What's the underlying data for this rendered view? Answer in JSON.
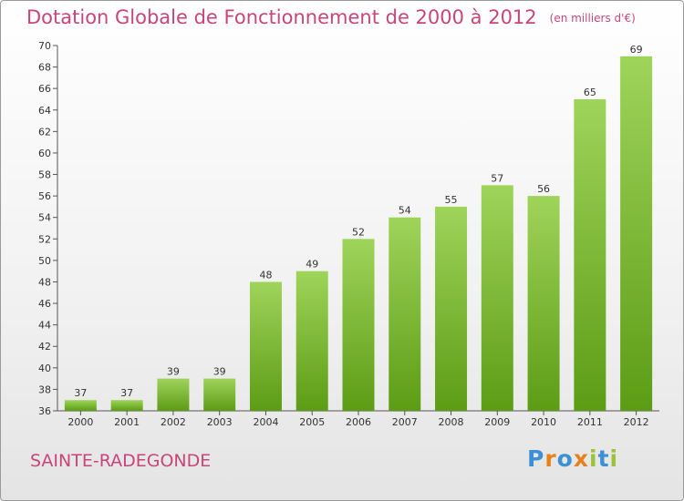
{
  "header": {
    "title": "Dotation Globale de Fonctionnement de 2000 à 2012",
    "unit": "(en milliers d'€)"
  },
  "footer": {
    "commune": "SAINTE-RADEGONDE",
    "logo": {
      "letters": [
        "P",
        "r",
        "o",
        "x",
        "i",
        "t",
        "i"
      ],
      "colors": [
        "#3d8fd6",
        "#e5821e",
        "#3d8fd6",
        "#e5821e",
        "#9bc23c",
        "#3d8fd6",
        "#9bc23c"
      ]
    }
  },
  "colors": {
    "title": "#c8457a",
    "bar_top": "#9fd45a",
    "bar_bottom": "#5c9c15",
    "axis": "#555555",
    "label": "#333333"
  },
  "chart_data": {
    "type": "bar",
    "title": "Dotation Globale de Fonctionnement de 2000 à 2012",
    "subtitle": "(en milliers d'€)",
    "xlabel": "",
    "ylabel": "",
    "categories": [
      "2000",
      "2001",
      "2002",
      "2003",
      "2004",
      "2005",
      "2006",
      "2007",
      "2008",
      "2009",
      "2010",
      "2011",
      "2012"
    ],
    "values": [
      37,
      37,
      39,
      39,
      48,
      49,
      52,
      54,
      55,
      57,
      56,
      65,
      69
    ],
    "ylim": [
      36,
      70
    ],
    "yticks": [
      36,
      38,
      40,
      42,
      44,
      46,
      48,
      50,
      52,
      54,
      56,
      58,
      60,
      62,
      64,
      66,
      68,
      70
    ],
    "grid": false,
    "legend": "none"
  }
}
